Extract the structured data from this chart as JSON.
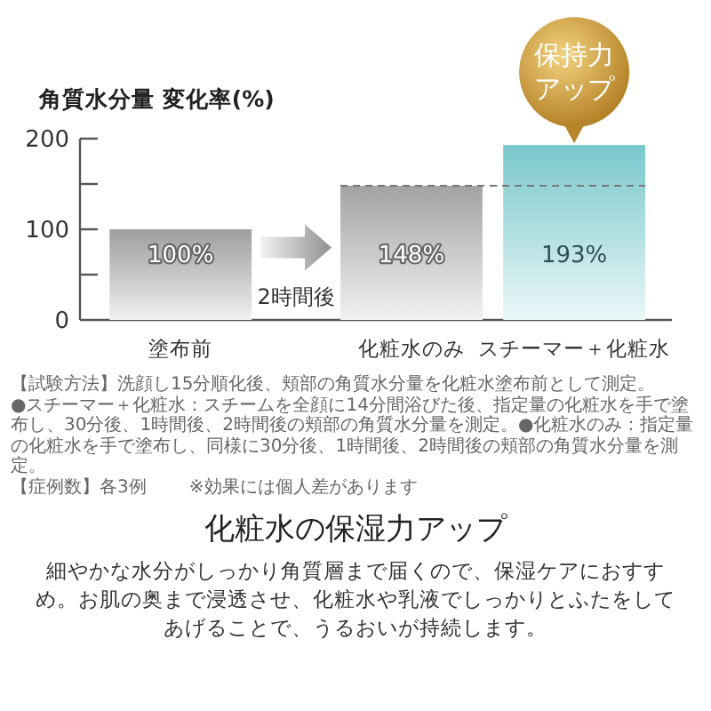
{
  "chart_data": {
    "type": "bar",
    "ylabel": "角質水分量 変化率(%)",
    "categories": [
      "塗布前",
      "化粧水のみ",
      "スチーマー＋化粧水"
    ],
    "values": [
      100,
      148,
      193
    ],
    "colors": [
      "#9e9e9e",
      "#a3a3a3",
      "#79c8cc"
    ],
    "value_labels": [
      "100%",
      "148%",
      "193%"
    ],
    "ylim": [
      0,
      200
    ],
    "yticks": [
      0,
      {
        "value": 50,
        "label": null
      },
      100,
      {
        "value": 150,
        "label": null
      },
      200
    ],
    "ref_lines": [
      {
        "axis": "y",
        "value": 148,
        "color": "#777777",
        "line_style": "dashed"
      }
    ],
    "annotations": [
      "2時間後",
      {
        "text": "保持力アップ",
        "x": "スチーマー＋化粧水",
        "y": 193
      },
      "【試験方法】洗顔し15分順化後、頬部の角質水分量を化粧水塗布前として測定。",
      "●スチーマー＋化粧水：スチームを全顔に14分間浴びた後、指定量の化粧水を手で塗布し、30分後、1時間後、2時間後の頬部の角質水分量を測定。●化粧水のみ：指定量の化粧水を手で塗布し、同様に30分後、1時間後、2時間後の頬部の角質水分量を測定。",
      "【症例数】各3例",
      "※効果には個人差があります",
      "化粧水の保湿力アップ",
      "細やかな水分がしっかり角質層まで届くので、保湿ケアにおすすめ。お肌の奥まで浸透させ、化粧水や乳液でしっかりとふたをしてあげることで、うるおいが持続します。"
    ]
  }
}
